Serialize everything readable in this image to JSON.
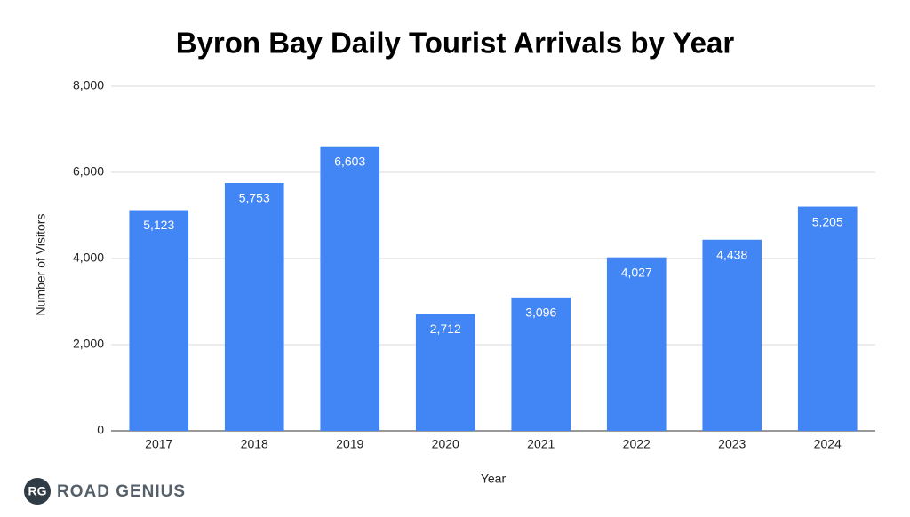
{
  "chart_data": {
    "type": "bar",
    "title": "Byron Bay Daily Tourist Arrivals by Year",
    "x_label": "Year",
    "y_label": "Number of Visitors",
    "categories": [
      "2017",
      "2018",
      "2019",
      "2020",
      "2021",
      "2022",
      "2023",
      "2024"
    ],
    "values": [
      5123,
      5753,
      6603,
      2712,
      3096,
      4027,
      4438,
      5205
    ],
    "value_labels": [
      "5,123",
      "5,753",
      "6,603",
      "2,712",
      "3,096",
      "4,027",
      "4,438",
      "5,205"
    ],
    "color": "#4285f4",
    "ylim": [
      0,
      8000
    ],
    "yticks": [
      0,
      {
        "value": 2000,
        "label": "2,000"
      },
      {
        "value": 4000,
        "label": "4,000"
      },
      {
        "value": 6000,
        "label": "6,000"
      },
      {
        "value": 8000,
        "label": "8,000"
      }
    ],
    "grid": true
  },
  "watermark": {
    "badge": "RG",
    "text": "ROAD GENIUS"
  }
}
